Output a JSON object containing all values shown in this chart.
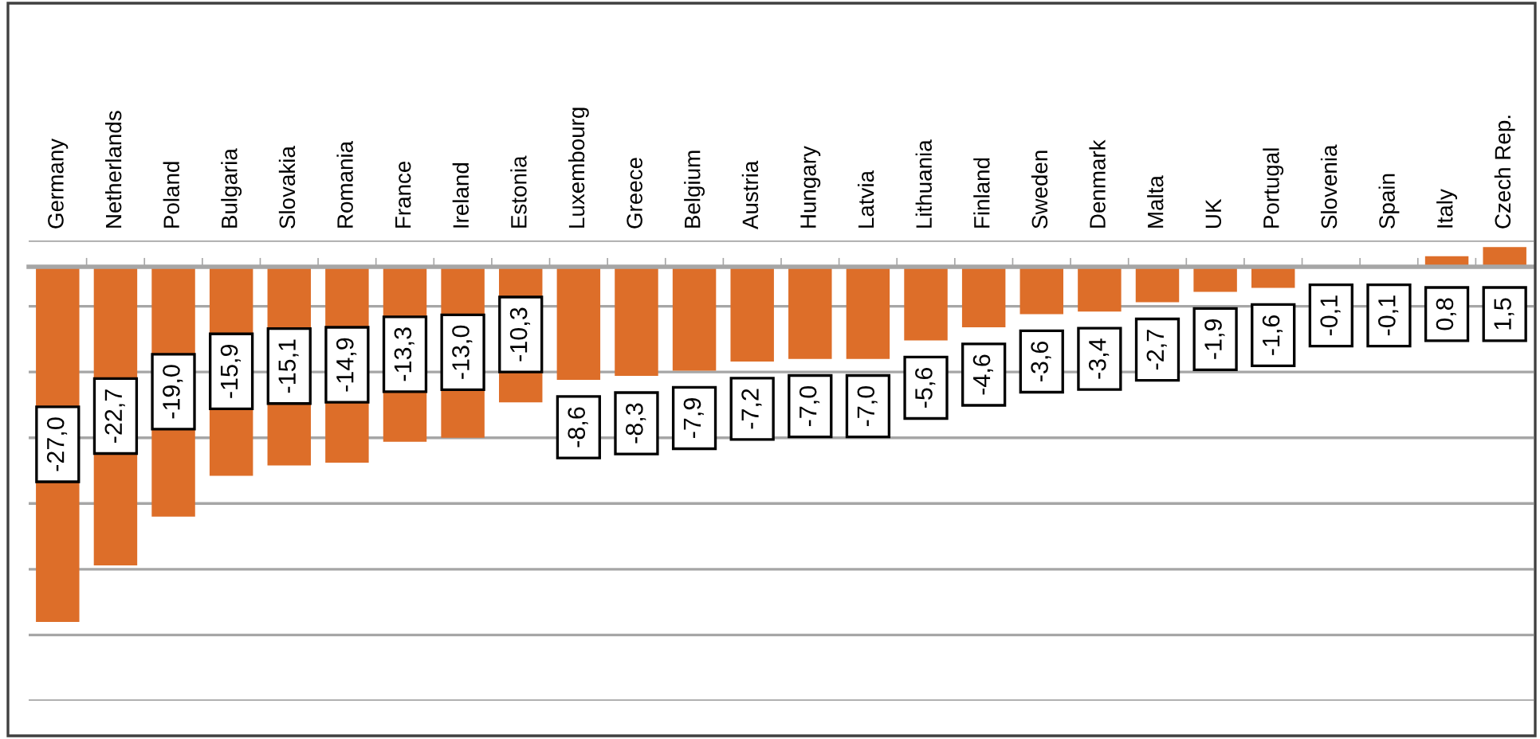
{
  "chart_data": {
    "type": "bar",
    "categories": [
      "Germany",
      "Netherlands",
      "Poland",
      "Bulgaria",
      "Slovakia",
      "Romania",
      "France",
      "Ireland",
      "Estonia",
      "Luxembourg",
      "Greece",
      "Belgium",
      "Austria",
      "Hungary",
      "Latvia",
      "Lithuania",
      "Finland",
      "Sweden",
      "Denmark",
      "Malta",
      "UK",
      "Portugal",
      "Slovenia",
      "Spain",
      "Italy",
      "Czech Rep."
    ],
    "values": [
      -27.0,
      -22.7,
      -19.0,
      -15.9,
      -15.1,
      -14.9,
      -13.3,
      -13.0,
      -10.3,
      -8.6,
      -8.3,
      -7.9,
      -7.2,
      -7.0,
      -7.0,
      -5.6,
      -4.6,
      -3.6,
      -3.4,
      -2.7,
      -1.9,
      -1.6,
      -0.1,
      -0.1,
      0.8,
      1.5
    ],
    "value_labels": [
      "-27,0",
      "-22,7",
      "-19,0",
      "-15,9",
      "-15,1",
      "-14,9",
      "-13,3",
      "-13,0",
      "-10,3",
      "-8,6",
      "-8,3",
      "-7,9",
      "-7,2",
      "-7,0",
      "-7,0",
      "-5,6",
      "-4,6",
      "-3,6",
      "-3,4",
      "-2,7",
      "-1,9",
      "-1,6",
      "-0,1",
      "-0,1",
      "0,8",
      "1,5"
    ],
    "color": "#dd6e29",
    "ylim": [
      -33,
      2
    ],
    "yticks": [
      {
        "value": -33,
        "label": null
      },
      {
        "value": -28,
        "label": null
      },
      {
        "value": -23,
        "label": null
      },
      {
        "value": -18,
        "label": null
      },
      {
        "value": -13,
        "label": null
      },
      {
        "value": -8,
        "label": null
      },
      {
        "value": -3,
        "label": null
      },
      {
        "value": 2,
        "label": null
      }
    ],
    "grid": "y",
    "tick_labels": "x"
  }
}
